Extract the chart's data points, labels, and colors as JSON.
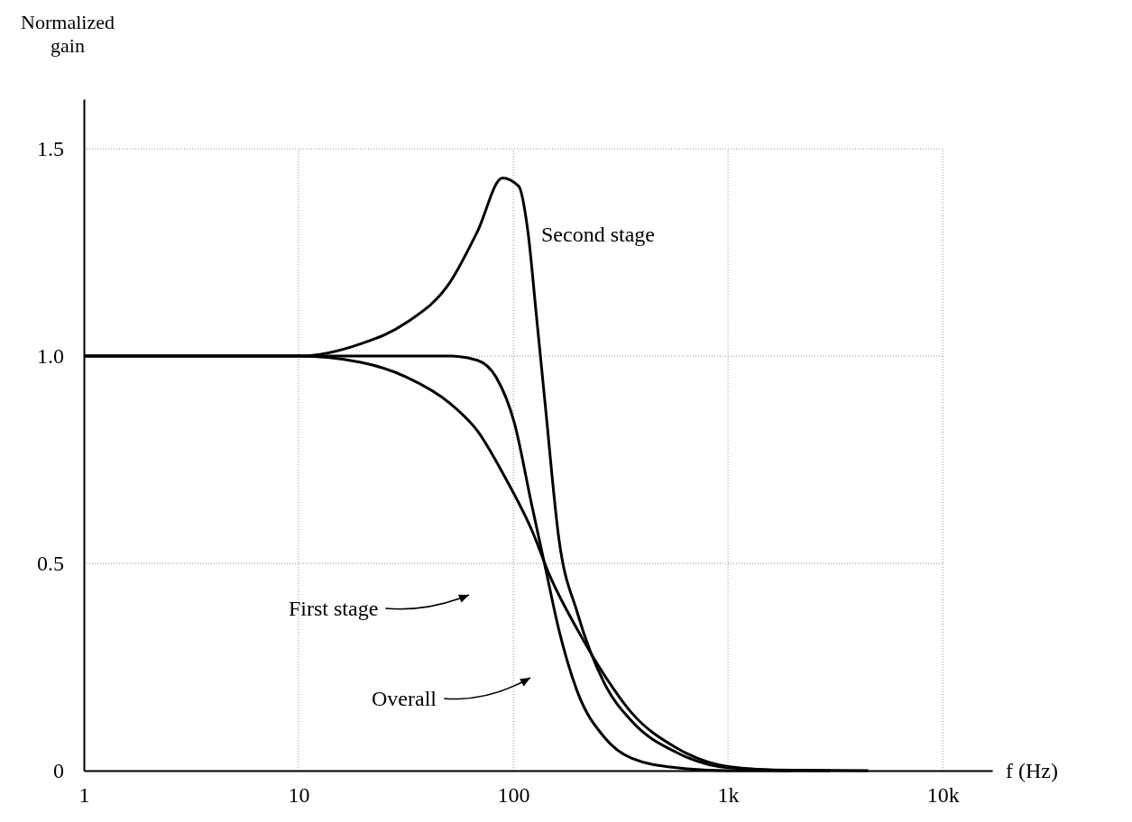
{
  "chart_data": {
    "type": "line",
    "xlabel": "f (Hz)",
    "ylabel": "Normalized\ngain",
    "log": "x",
    "grid": true,
    "legend": "left",
    "marker": "none",
    "line_style": "solid",
    "xlim": [
      1,
      17000
    ],
    "ylim": [
      0,
      1.62
    ],
    "xticks": [
      1,
      10,
      100,
      {
        "value": 1000,
        "label": "1k"
      },
      {
        "value": 10000,
        "label": "10k"
      }
    ],
    "yticks": [
      0,
      {
        "value": 0.5,
        "label": "0.5"
      },
      {
        "value": 1,
        "label": "1.0"
      },
      1.5
    ],
    "series": [
      {
        "name": "Second stage",
        "color": "#000000",
        "x": [
          1,
          10,
          19.5,
          31.6,
          51,
          68,
          89,
          106,
          117,
          128,
          141,
          163,
          199,
          266,
          355,
          575,
          1000,
          2000,
          4500
        ],
        "values": [
          1,
          1,
          1.03,
          1.08,
          1.18,
          1.3,
          1.43,
          1.41,
          1.3,
          1.1,
          0.88,
          0.56,
          0.38,
          0.21,
          0.12,
          0.044,
          0.007,
          0.001,
          0
        ]
      },
      {
        "name": "First stage",
        "color": "#000000",
        "x": [
          1,
          10,
          19.5,
          31.6,
          51,
          68,
          91,
          122,
          148,
          199,
          266,
          355,
          575,
          1000,
          2000,
          3000
        ],
        "values": [
          1,
          1,
          0.985,
          0.95,
          0.885,
          0.82,
          0.71,
          0.58,
          0.47,
          0.34,
          0.23,
          0.14,
          0.055,
          0.01,
          0,
          0
        ]
      },
      {
        "name": "Overall",
        "color": "#000000",
        "x": [
          1,
          10,
          51,
          68,
          83,
          101,
          122,
          141,
          163,
          199,
          266,
          355,
          575,
          1000,
          2000
        ],
        "values": [
          1,
          1,
          1,
          0.99,
          0.95,
          0.84,
          0.64,
          0.49,
          0.34,
          0.19,
          0.08,
          0.03,
          0.007,
          0,
          0
        ]
      }
    ]
  }
}
